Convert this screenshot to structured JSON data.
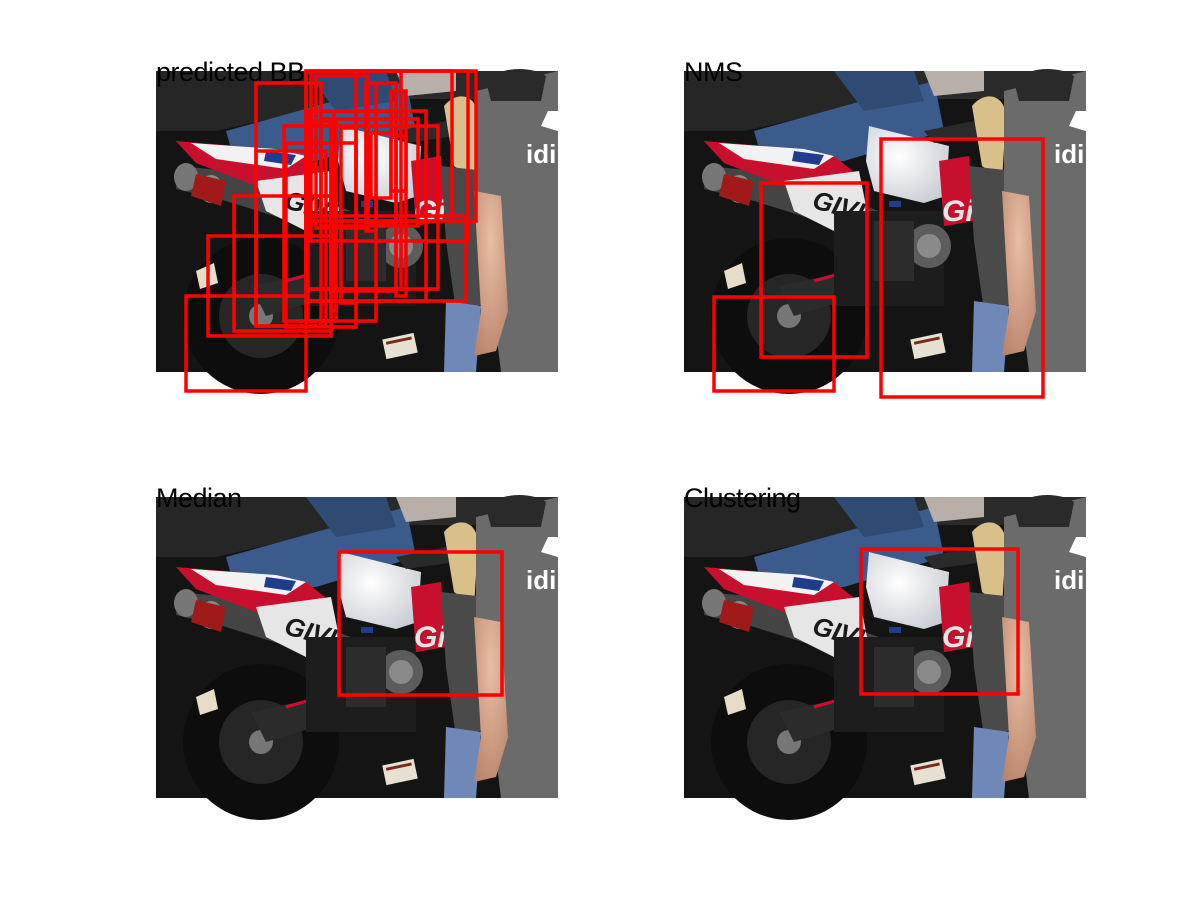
{
  "panels": [
    {
      "id": "predicted-bb",
      "title": "predicted BB"
    },
    {
      "id": "nms",
      "title": "NMS"
    },
    {
      "id": "median",
      "title": "Median"
    },
    {
      "id": "clustering",
      "title": "Clustering"
    }
  ],
  "colors": {
    "box": "#ff0000",
    "background": "#ffffff",
    "photo_backdrop": "#151515",
    "fairing_white": "#e8e8ea",
    "fairing_red": "#c8102e",
    "shirt_grey": "#6b6b6b",
    "jeans_blue": "#3b5b8c",
    "skin": "#d9a98c"
  },
  "photo_text": {
    "brand_partial": "idi",
    "fairing_logo": "GIVI",
    "tank_logo": "Gi"
  }
}
